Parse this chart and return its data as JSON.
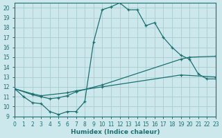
{
  "bg_color": "#cde8ec",
  "grid_color": "#aacccc",
  "line_color": "#1a7070",
  "xlabel": "Humidex (Indice chaleur)",
  "xlim": [
    0,
    23
  ],
  "ylim": [
    9,
    20.5
  ],
  "xticks": [
    0,
    1,
    2,
    3,
    4,
    5,
    6,
    7,
    8,
    9,
    10,
    11,
    12,
    13,
    14,
    15,
    16,
    17,
    18,
    19,
    20,
    21,
    22,
    23
  ],
  "yticks": [
    9,
    10,
    11,
    12,
    13,
    14,
    15,
    16,
    17,
    18,
    19,
    20
  ],
  "curve_x": [
    0,
    1,
    2,
    3,
    4,
    5,
    6,
    7,
    8,
    9,
    10,
    11,
    12,
    13,
    14,
    15,
    16,
    17,
    18,
    19,
    20,
    21,
    22,
    23
  ],
  "curve_y": [
    11.8,
    11.0,
    10.4,
    10.3,
    9.5,
    9.2,
    9.5,
    9.5,
    10.5,
    16.5,
    19.8,
    20.1,
    20.5,
    19.8,
    19.8,
    18.2,
    18.5,
    17.0,
    16.0,
    15.2,
    14.8,
    13.3,
    12.8,
    12.8
  ],
  "line2_x": [
    0,
    2,
    3,
    4,
    5,
    6,
    7,
    10,
    19,
    20,
    23
  ],
  "line2_y": [
    11.8,
    11.2,
    11.0,
    10.8,
    10.9,
    11.1,
    11.5,
    12.2,
    14.8,
    15.0,
    15.1
  ],
  "line3_x": [
    0,
    2,
    3,
    6,
    7,
    10,
    19,
    23
  ],
  "line3_y": [
    11.8,
    11.3,
    11.1,
    11.4,
    11.6,
    12.0,
    13.2,
    13.0
  ]
}
